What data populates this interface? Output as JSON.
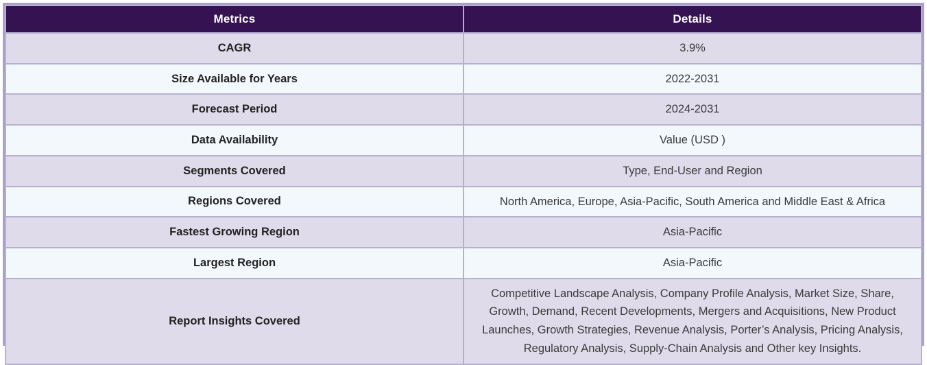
{
  "table": {
    "columns": [
      {
        "label": "Metrics"
      },
      {
        "label": "Details"
      }
    ],
    "rows": [
      {
        "metric": "CAGR",
        "detail": "3.9%"
      },
      {
        "metric": "Size Available for Years",
        "detail": "2022-2031"
      },
      {
        "metric": "Forecast Period",
        "detail": "2024-2031"
      },
      {
        "metric": "Data Availability",
        "detail": "Value (USD )"
      },
      {
        "metric": "Segments Covered",
        "detail": "Type, End-User and Region"
      },
      {
        "metric": "Regions Covered",
        "detail": "North America, Europe, Asia-Pacific, South America and Middle East & Africa"
      },
      {
        "metric": "Fastest Growing Region",
        "detail": "Asia-Pacific"
      },
      {
        "metric": "Largest Region",
        "detail": "Asia-Pacific"
      },
      {
        "metric": "Report Insights Covered",
        "detail": "Competitive Landscape Analysis, Company Profile Analysis, Market Size, Share, Growth, Demand, Recent Developments, Mergers and Acquisitions, New Product Launches, Growth Strategies, Revenue Analysis, Porter’s Analysis, Pricing Analysis, Regulatory Analysis, Supply-Chain Analysis and Other key Insights."
      }
    ],
    "colors": {
      "header_bg": "#351251",
      "header_text": "#ffffff",
      "row_odd_bg": "#dfdbea",
      "row_even_bg": "#f3f8fc",
      "border_inner": "#b6afd3",
      "border_outer": "#a9a1c6",
      "metric_text": "#222222",
      "detail_text": "#3a3a3a"
    }
  }
}
